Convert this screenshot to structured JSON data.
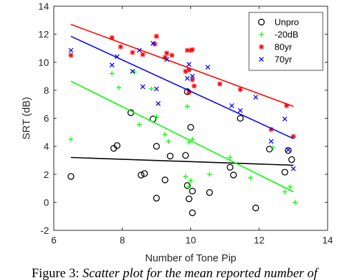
{
  "chart_data": {
    "type": "scatter",
    "xlabel": "Number of Tone Pip",
    "ylabel": "SRT (dB)",
    "xlim": [
      6,
      14
    ],
    "ylim": [
      -2,
      14
    ],
    "xticks": [
      6,
      8,
      10,
      12,
      14
    ],
    "yticks": [
      -2,
      0,
      2,
      4,
      6,
      8,
      10,
      12,
      14
    ],
    "grid": false,
    "legend_position": "top-right",
    "series": [
      {
        "name": "Unpro",
        "color": "#000000",
        "marker": "circle",
        "points": [
          [
            6.5,
            1.85
          ],
          [
            7.75,
            3.85
          ],
          [
            7.85,
            4.05
          ],
          [
            8.25,
            6.4
          ],
          [
            8.55,
            1.95
          ],
          [
            8.65,
            2.05
          ],
          [
            8.9,
            5.95
          ],
          [
            9.0,
            0.3
          ],
          [
            9.0,
            4.0
          ],
          [
            9.25,
            1.6
          ],
          [
            9.4,
            3.3
          ],
          [
            9.95,
            0.25
          ],
          [
            9.9,
            1.2
          ],
          [
            9.85,
            3.35
          ],
          [
            9.9,
            7.9
          ],
          [
            10.0,
            5.35
          ],
          [
            10.05,
            0.8
          ],
          [
            10.05,
            -0.75
          ],
          [
            10.55,
            0.7
          ],
          [
            11.15,
            2.5
          ],
          [
            11.25,
            1.95
          ],
          [
            11.45,
            6.0
          ],
          [
            11.9,
            -0.4
          ],
          [
            12.3,
            3.8
          ],
          [
            12.75,
            2.15
          ],
          [
            12.85,
            3.7
          ],
          [
            12.95,
            3.05
          ]
        ],
        "fit": [
          [
            6.5,
            3.2
          ],
          [
            13.0,
            2.65
          ]
        ]
      },
      {
        "name": "-20dB",
        "color": "#00ff00",
        "marker": "plus",
        "points": [
          [
            6.5,
            4.5
          ],
          [
            7.7,
            9.2
          ],
          [
            7.9,
            8.2
          ],
          [
            8.35,
            9.3
          ],
          [
            8.5,
            5.55
          ],
          [
            8.85,
            8.1
          ],
          [
            9.0,
            6.1
          ],
          [
            9.25,
            4.85
          ],
          [
            9.35,
            4.35
          ],
          [
            9.85,
            1.85
          ],
          [
            9.9,
            6.85
          ],
          [
            9.95,
            4.3
          ],
          [
            9.95,
            1.15
          ],
          [
            10.0,
            1.55
          ],
          [
            10.05,
            4.5
          ],
          [
            10.55,
            2.0
          ],
          [
            11.15,
            3.2
          ],
          [
            11.75,
            1.75
          ],
          [
            12.4,
            3.9
          ],
          [
            12.75,
            0.75
          ],
          [
            12.9,
            1.1
          ],
          [
            13.05,
            0.0
          ]
        ],
        "fit": [
          [
            6.5,
            8.65
          ],
          [
            13.0,
            0.75
          ]
        ]
      },
      {
        "name": "80yr",
        "color": "#ff0000",
        "marker": "star",
        "points": [
          [
            6.5,
            10.5
          ],
          [
            7.7,
            11.75
          ],
          [
            7.95,
            11.1
          ],
          [
            8.3,
            10.7
          ],
          [
            8.6,
            10.55
          ],
          [
            8.95,
            11.3
          ],
          [
            9.0,
            11.85
          ],
          [
            9.25,
            10.35
          ],
          [
            9.3,
            10.65
          ],
          [
            9.45,
            10.5
          ],
          [
            9.85,
            9.35
          ],
          [
            9.9,
            10.85
          ],
          [
            9.95,
            9.45
          ],
          [
            9.95,
            7.85
          ],
          [
            10.0,
            10.85
          ],
          [
            10.05,
            8.75
          ],
          [
            10.05,
            10.9
          ],
          [
            10.1,
            8.3
          ],
          [
            10.85,
            8.45
          ],
          [
            11.45,
            8.05
          ],
          [
            12.35,
            5.2
          ],
          [
            12.8,
            6.9
          ],
          [
            13.0,
            4.7
          ]
        ],
        "fit": [
          [
            6.5,
            12.7
          ],
          [
            13.0,
            6.85
          ]
        ]
      },
      {
        "name": "70yr",
        "color": "#0000ff",
        "marker": "x",
        "points": [
          [
            6.5,
            10.85
          ],
          [
            7.7,
            9.8
          ],
          [
            7.85,
            10.4
          ],
          [
            8.3,
            9.35
          ],
          [
            8.5,
            10.85
          ],
          [
            8.6,
            8.25
          ],
          [
            8.9,
            11.35
          ],
          [
            9.0,
            8.1
          ],
          [
            9.05,
            7.05
          ],
          [
            9.3,
            10.2
          ],
          [
            9.9,
            8.85
          ],
          [
            9.95,
            9.85
          ],
          [
            10.05,
            9.0
          ],
          [
            10.5,
            9.65
          ],
          [
            11.2,
            6.9
          ],
          [
            11.45,
            6.55
          ],
          [
            11.9,
            7.5
          ],
          [
            12.35,
            4.35
          ],
          [
            12.75,
            5.95
          ],
          [
            12.85,
            3.75
          ],
          [
            13.0,
            2.4
          ]
        ],
        "fit": [
          [
            6.5,
            11.85
          ],
          [
            13.0,
            4.55
          ]
        ]
      }
    ]
  },
  "caption": {
    "prefix": "Figure 3: ",
    "text": "Scatter plot for the mean reported number of"
  }
}
